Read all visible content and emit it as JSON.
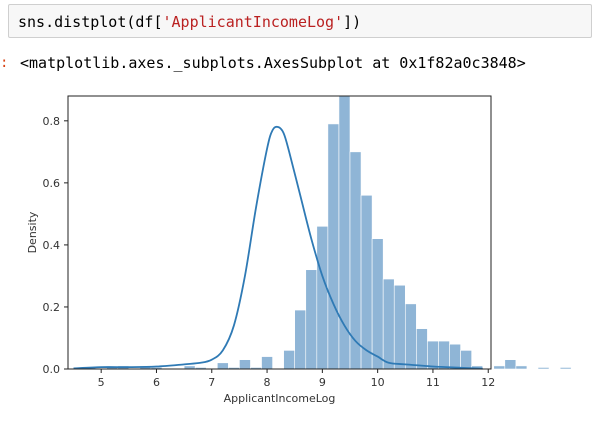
{
  "cell": {
    "code_prefix": "sns.distplot(df[",
    "code_string": "'ApplicantIncomeLog'",
    "code_suffix": "])"
  },
  "output": {
    "prompt": ":",
    "text": "<matplotlib.axes._subplots.AxesSubplot at 0x1f82a0c3848>"
  },
  "chart_data": {
    "type": "bar",
    "xlabel": "ApplicantIncomeLog",
    "ylabel": "Density",
    "xlim": [
      4.4,
      12.05
    ],
    "ylim": [
      0,
      0.88
    ],
    "xticks": [
      5,
      6,
      7,
      8,
      9,
      10,
      11,
      12
    ],
    "yticks": [
      0.0,
      0.2,
      0.4,
      0.6,
      0.8
    ],
    "ytick_labels": [
      "0.0",
      "0.2",
      "0.4",
      "0.6",
      "0.8"
    ],
    "bar_color": "#8fb5d6",
    "kde_color": "#2f7ab5",
    "histogram": {
      "bin_start": 4.5,
      "bin_width": 0.2,
      "values": [
        0.0,
        0.005,
        0.0,
        0.005,
        0.01,
        0.0,
        0.01,
        0.005,
        0.0,
        0.0,
        0.01,
        0.005,
        0.0,
        0.02,
        0.005,
        0.03,
        0.005,
        0.04,
        0.0,
        0.06,
        0.19,
        0.32,
        0.46,
        0.79,
        0.88,
        0.7,
        0.56,
        0.42,
        0.29,
        0.27,
        0.21,
        0.13,
        0.09,
        0.09,
        0.08,
        0.06,
        0.01,
        0.0,
        0.01,
        0.03,
        0.01,
        0.0,
        0.005,
        0.0,
        0.005,
        0.0,
        0.0,
        0.0,
        0.0,
        0.0,
        0.0,
        0.0
      ]
    },
    "kde": {
      "x": [
        4.5,
        5.0,
        5.5,
        6.0,
        6.5,
        6.8,
        7.0,
        7.2,
        7.4,
        7.6,
        7.8,
        8.0,
        8.1,
        8.2,
        8.3,
        8.4,
        8.6,
        8.8,
        9.0,
        9.2,
        9.4,
        9.6,
        9.8,
        10.0,
        10.2,
        10.5,
        11.0,
        11.5,
        11.9
      ],
      "y": [
        0.002,
        0.006,
        0.006,
        0.008,
        0.015,
        0.02,
        0.03,
        0.06,
        0.14,
        0.3,
        0.52,
        0.71,
        0.77,
        0.78,
        0.76,
        0.7,
        0.56,
        0.42,
        0.3,
        0.21,
        0.14,
        0.09,
        0.06,
        0.04,
        0.02,
        0.015,
        0.008,
        0.004,
        0.001
      ]
    }
  }
}
